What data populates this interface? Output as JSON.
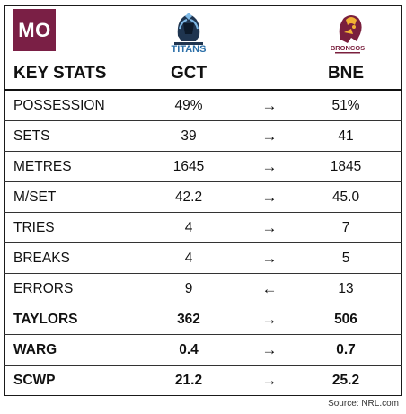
{
  "badge": {
    "text": "MO",
    "color": "#7a1f45"
  },
  "teams": {
    "home": {
      "abbr": "GCT",
      "logo_icon": "titans-logo-icon",
      "logo_text": "TITANS"
    },
    "away": {
      "abbr": "BNE",
      "logo_icon": "broncos-logo-icon",
      "logo_text": "BRONCOS"
    }
  },
  "header": {
    "label": "KEY STATS"
  },
  "rows": [
    {
      "label": "POSSESSION",
      "gct": "49%",
      "arrow": "→",
      "bne": "51%"
    },
    {
      "label": "SETS",
      "gct": "39",
      "arrow": "→",
      "bne": "41"
    },
    {
      "label": "METRES",
      "gct": "1645",
      "arrow": "→",
      "bne": "1845"
    },
    {
      "label": "M/SET",
      "gct": "42.2",
      "arrow": "→",
      "bne": "45.0"
    },
    {
      "label": "TRIES",
      "gct": "4",
      "arrow": "→",
      "bne": "7"
    },
    {
      "label": "BREAKS",
      "gct": "4",
      "arrow": "→",
      "bne": "5"
    },
    {
      "label": "ERRORS",
      "gct": "9",
      "arrow": "←",
      "bne": "13"
    },
    {
      "label": "TAYLORS",
      "gct": "362",
      "arrow": "→",
      "bne": "506"
    },
    {
      "label": "WARG",
      "gct": "0.4",
      "arrow": "→",
      "bne": "0.7"
    },
    {
      "label": "SCWP",
      "gct": "21.2",
      "arrow": "→",
      "bne": "25.2"
    }
  ],
  "source": "Source: NRL.com"
}
